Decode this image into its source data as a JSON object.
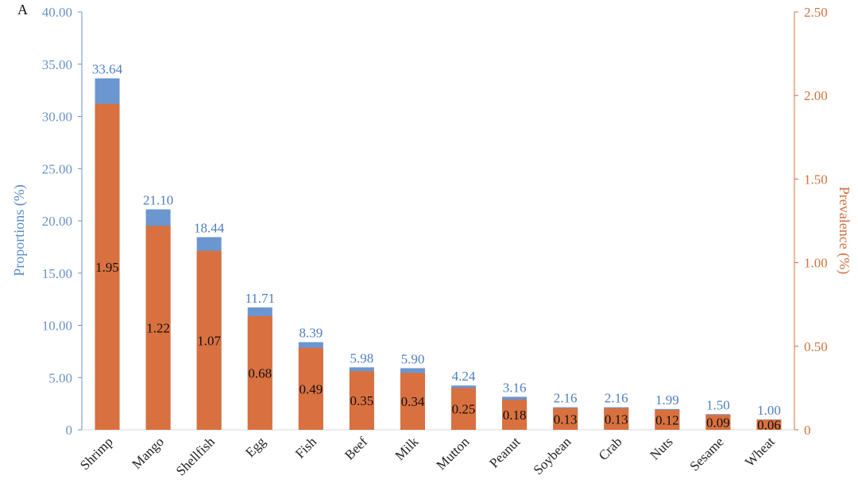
{
  "panel_label": "A",
  "chart_data": {
    "type": "bar",
    "categories": [
      "Shrimp",
      "Mango",
      "Shellfish",
      "Egg",
      "Fish",
      "Beef",
      "Milk",
      "Mutton",
      "Peanut",
      "Soybean",
      "Crab",
      "Nuts",
      "Sesame",
      "Wheat"
    ],
    "series": [
      {
        "axis": "left",
        "color": "#6b96cf",
        "values": [
          33.64,
          21.1,
          18.44,
          11.71,
          8.39,
          5.98,
          5.9,
          4.24,
          3.16,
          2.16,
          2.16,
          1.99,
          1.5,
          1.0
        ],
        "labels": [
          "33.64",
          "21.10",
          "18.44",
          "11.71",
          "8.39",
          "5.98",
          "5.90",
          "4.24",
          "3.16",
          "2.16",
          "2.16",
          "1.99",
          "1.50",
          "1.00"
        ]
      },
      {
        "axis": "right",
        "color": "#d9703f",
        "values": [
          1.95,
          1.22,
          1.07,
          0.68,
          0.49,
          0.35,
          0.34,
          0.25,
          0.18,
          0.13,
          0.13,
          0.12,
          0.09,
          0.06
        ],
        "labels": [
          "1.95",
          "1.22",
          "1.07",
          "0.68",
          "0.49",
          "0.35",
          "0.34",
          "0.25",
          "0.18",
          "0.13",
          "0.13",
          "0.12",
          "0.09",
          "0.06"
        ]
      }
    ],
    "ylabel": "Proportions (%)",
    "y2label": "Prevalence (%)",
    "ylim": [
      0,
      40
    ],
    "y2lim": [
      0,
      2.5
    ],
    "yticks": [
      "0",
      "5.00",
      "10.00",
      "15.00",
      "20.00",
      "25.00",
      "30.00",
      "35.00",
      "40.00"
    ],
    "y2ticks": [
      "0",
      "0.50",
      "1.00",
      "1.50",
      "2.00",
      "2.50"
    ],
    "grid": false,
    "legend": "none",
    "left_axis_color": "#6a93c8",
    "right_axis_color": "#d2723f"
  }
}
